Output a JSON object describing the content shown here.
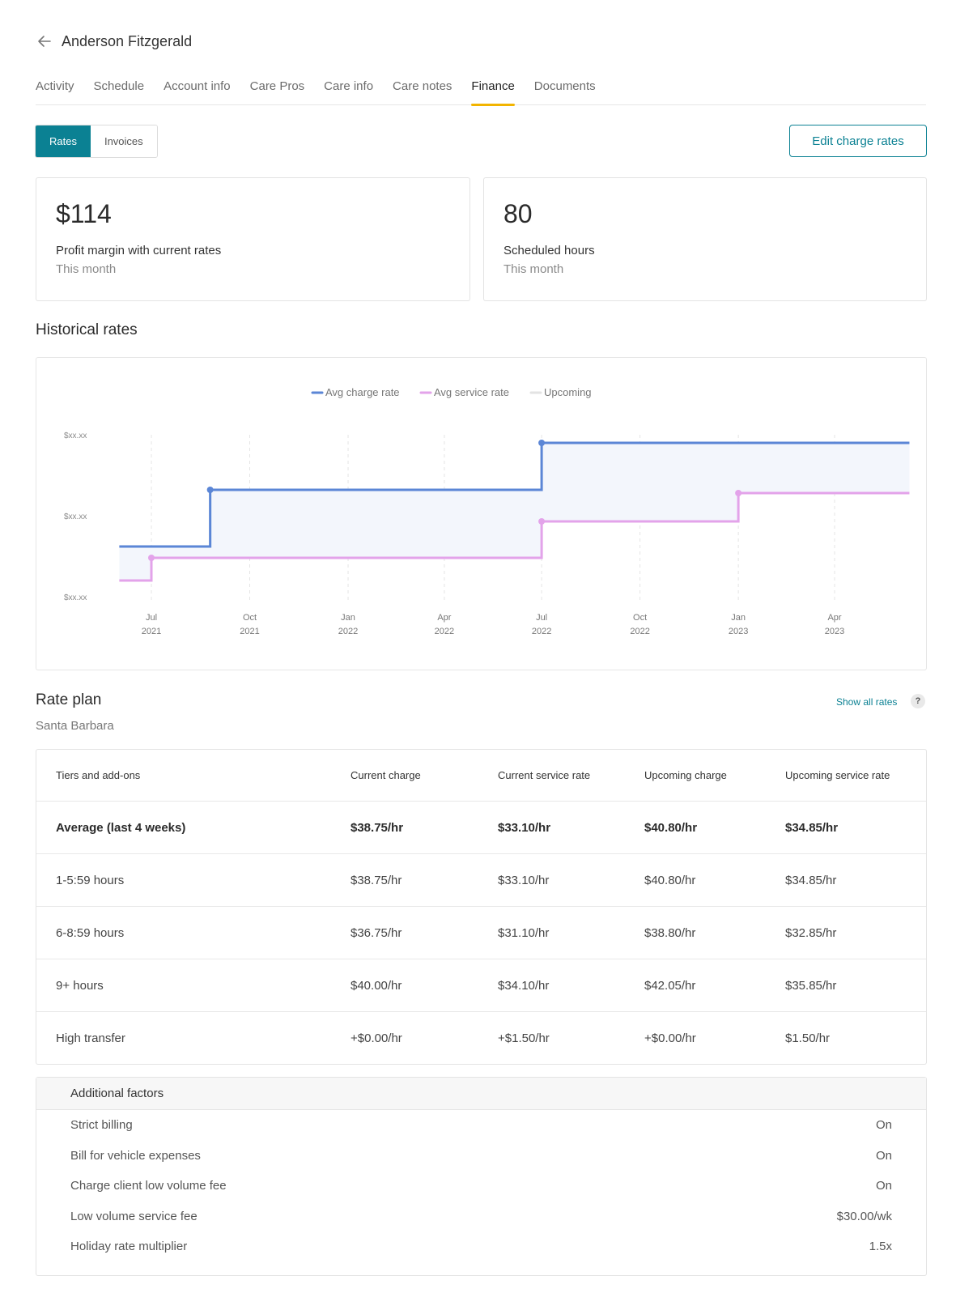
{
  "header": {
    "client_name": "Anderson Fitzgerald",
    "back_icon": "arrow-left-icon"
  },
  "tabs": [
    {
      "label": "Activity",
      "active": false
    },
    {
      "label": "Schedule",
      "active": false
    },
    {
      "label": "Account info",
      "active": false
    },
    {
      "label": "Care Pros",
      "active": false
    },
    {
      "label": "Care info",
      "active": false
    },
    {
      "label": "Care notes",
      "active": false
    },
    {
      "label": "Finance",
      "active": true
    },
    {
      "label": "Documents",
      "active": false
    }
  ],
  "segmented": {
    "rates": "Rates",
    "invoices": "Invoices"
  },
  "edit_button": "Edit charge rates",
  "stats": {
    "profit": {
      "value": "$114",
      "label": "Profit margin with current rates",
      "sub": "This month"
    },
    "hours": {
      "value": "80",
      "label": "Scheduled hours",
      "sub": "This month"
    }
  },
  "historical_title": "Historical rates",
  "colors": {
    "accent": "#0b8193",
    "tab_underline": "#f2b400",
    "charge_line": "#5b86d6",
    "service_line": "#e3a3ea",
    "band_fill": "#f3f6fc",
    "upcoming": "#e3e3e3"
  },
  "chart_data": {
    "type": "line",
    "step": true,
    "legend": [
      {
        "name": "Avg charge rate"
      },
      {
        "name": "Avg service rate"
      },
      {
        "name": "Upcoming"
      }
    ],
    "legend_position": "top-center",
    "y_tick_labels": [
      "$xx.xx",
      "$xx.xx",
      "$xx.xx"
    ],
    "x_ticks": [
      {
        "month": "Jul",
        "year": "2021"
      },
      {
        "month": "Oct",
        "year": "2021"
      },
      {
        "month": "Jan",
        "year": "2022"
      },
      {
        "month": "Apr",
        "year": "2022"
      },
      {
        "month": "Jul",
        "year": "2022"
      },
      {
        "month": "Oct",
        "year": "2022"
      },
      {
        "month": "Jan",
        "year": "2023"
      },
      {
        "month": "Apr",
        "year": "2023"
      }
    ],
    "grid": "vertical-dashed",
    "ylim": [
      0,
      2
    ],
    "series": [
      {
        "name": "Avg charge rate",
        "x": [
          "2021-06-01",
          "2021-08-25",
          "2022-07-01",
          "2023-06-10"
        ],
        "values": [
          0.62,
          1.32,
          1.9,
          1.9
        ]
      },
      {
        "name": "Avg service rate",
        "x": [
          "2021-06-01",
          "2021-07-01",
          "2022-07-01",
          "2023-01-01",
          "2023-06-10"
        ],
        "values": [
          0.2,
          0.48,
          0.93,
          1.28,
          1.28
        ]
      }
    ]
  },
  "rate_plan": {
    "title": "Rate plan",
    "location": "Santa Barbara",
    "show_all": "Show all rates",
    "help": "?",
    "headers": [
      "Tiers and add-ons",
      "Current charge",
      "Current service rate",
      "Upcoming charge",
      "Upcoming service rate"
    ],
    "rows": [
      {
        "tier": "Average (last 4 weeks)",
        "current_charge": "$38.75/hr",
        "current_service": "$33.10/hr",
        "upcoming_charge": "$40.80/hr",
        "upcoming_service": "$34.85/hr",
        "bold": true
      },
      {
        "tier": "1-5:59 hours",
        "current_charge": "$38.75/hr",
        "current_service": "$33.10/hr",
        "upcoming_charge": "$40.80/hr",
        "upcoming_service": "$34.85/hr"
      },
      {
        "tier": "6-8:59 hours",
        "current_charge": "$36.75/hr",
        "current_service": "$31.10/hr",
        "upcoming_charge": "$38.80/hr",
        "upcoming_service": "$32.85/hr"
      },
      {
        "tier": "9+ hours",
        "current_charge": "$40.00/hr",
        "current_service": "$34.10/hr",
        "upcoming_charge": "$42.05/hr",
        "upcoming_service": "$35.85/hr"
      },
      {
        "tier": "High transfer",
        "current_charge": "+$0.00/hr",
        "current_service": "+$1.50/hr",
        "upcoming_charge": "+$0.00/hr",
        "upcoming_service": "$1.50/hr"
      }
    ]
  },
  "additional_factors": {
    "title": "Additional factors",
    "items": [
      {
        "label": "Strict billing",
        "value": "On"
      },
      {
        "label": "Bill for vehicle expenses",
        "value": "On"
      },
      {
        "label": "Charge client low volume fee",
        "value": "On"
      },
      {
        "label": "Low volume service fee",
        "value": "$30.00/wk"
      },
      {
        "label": "Holiday rate multiplier",
        "value": "1.5x"
      }
    ]
  }
}
